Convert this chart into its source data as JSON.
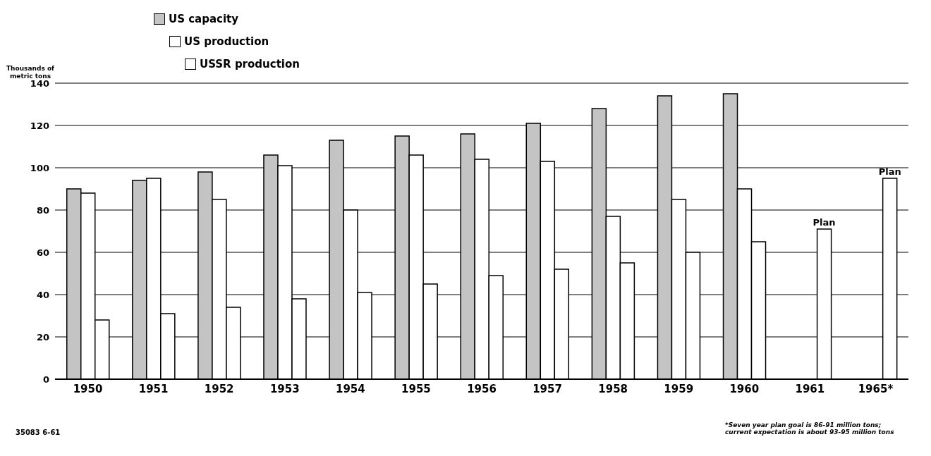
{
  "chart_data": {
    "type": "bar",
    "ylabel": "Thousands of metric tons",
    "categories": [
      "1950",
      "1951",
      "1952",
      "1953",
      "1954",
      "1955",
      "1956",
      "1957",
      "1958",
      "1959",
      "1960",
      "1961",
      "1965*"
    ],
    "series": [
      {
        "name": "US capacity",
        "color": "#c4c4c4",
        "values": [
          90,
          94,
          98,
          106,
          113,
          115,
          116,
          121,
          128,
          134,
          135,
          null,
          null
        ]
      },
      {
        "name": "US production",
        "color": "#ffffff",
        "values": [
          88,
          95,
          85,
          101,
          80,
          106,
          104,
          103,
          77,
          85,
          90,
          null,
          null
        ]
      },
      {
        "name": "USSR production",
        "color": "#ffffff",
        "values": [
          28,
          31,
          34,
          38,
          41,
          45,
          49,
          52,
          55,
          60,
          65,
          71,
          95
        ],
        "value_labels": [
          null,
          null,
          null,
          null,
          null,
          null,
          null,
          null,
          null,
          null,
          null,
          "Plan",
          "Plan"
        ]
      }
    ],
    "ylim": [
      0,
      140
    ],
    "yticks": [
      0,
      20,
      40,
      60,
      80,
      100,
      120,
      140
    ],
    "grid": "y",
    "legend": "top left",
    "annotations": [
      "*Seven year plan goal is 86-91 million tons; current expectation is about 93-95 million tons",
      "35083 6-61"
    ]
  }
}
